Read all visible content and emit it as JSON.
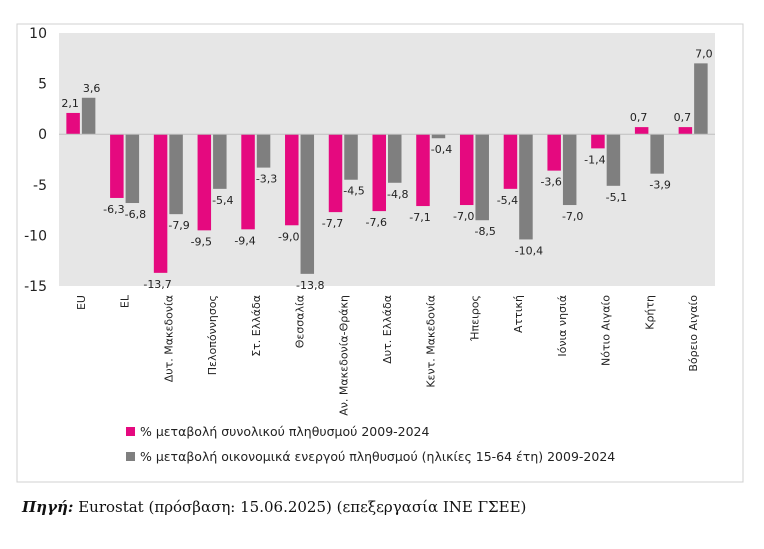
{
  "chart_data": {
    "type": "bar",
    "categories": [
      "EU",
      "EL",
      "Δυτ. Μακεδονία",
      "Πελοπόννησος",
      "Στ. Ελλάδα",
      "Θεσσαλία",
      "Αν. Μακεδονία-Θράκη",
      "Δυτ. Ελλάδα",
      "Κεντ. Μακεδονία",
      "Ήπειρος",
      "Αττική",
      "Ιόνια νησιά",
      "Νότιο Αιγαίο",
      "Κρήτη",
      "Βόρειο Αιγαίο"
    ],
    "series": [
      {
        "name": "% μεταβολή συνολικού πληθυσμού 2009-2024",
        "color": "#e5097f",
        "values": [
          2.1,
          -6.3,
          -13.7,
          -9.5,
          -9.4,
          -9.0,
          -7.7,
          -7.6,
          -7.1,
          -7.0,
          -5.4,
          -3.6,
          -1.4,
          0.7,
          0.7
        ],
        "labels": [
          "2,1",
          "-6,3",
          "-13,7",
          "-9,5",
          "-9,4",
          "-9,0",
          "-7,7",
          "-7,6",
          "-7,1",
          "-7,0",
          "-5,4",
          "-3,6",
          "-1,4",
          "0,7",
          "0,7"
        ]
      },
      {
        "name": "% μεταβολή οικονομικά ενεργού πληθυσμού (ηλικίες 15-64 έτη) 2009-2024",
        "color": "#7f7f7f",
        "values": [
          3.6,
          -6.8,
          -7.9,
          -5.4,
          -3.3,
          -13.8,
          -4.5,
          -4.8,
          -0.4,
          -8.5,
          -10.4,
          -7.0,
          -5.1,
          -3.9,
          7.0
        ],
        "labels": [
          "3,6",
          "-6,8",
          "-7,9",
          "-5,4",
          "-3,3",
          "-13,8",
          "-4,5",
          "-4,8",
          "-0,4",
          "-8,5",
          "-10,4",
          "-7,0",
          "-5,1",
          "-3,9",
          "7,0"
        ]
      }
    ],
    "ylim": [
      -15,
      10
    ],
    "yticks": [
      10,
      5,
      0,
      -5,
      -10,
      -15
    ],
    "grid": false,
    "legend": "bottom",
    "plot_background": "#e6e6e6"
  },
  "source": {
    "label": "Πηγή:",
    "text": " Eurostat (πρόσβαση: 15.06.2025) (επεξεργασία ΙΝΕ ΓΣΕΕ)"
  }
}
